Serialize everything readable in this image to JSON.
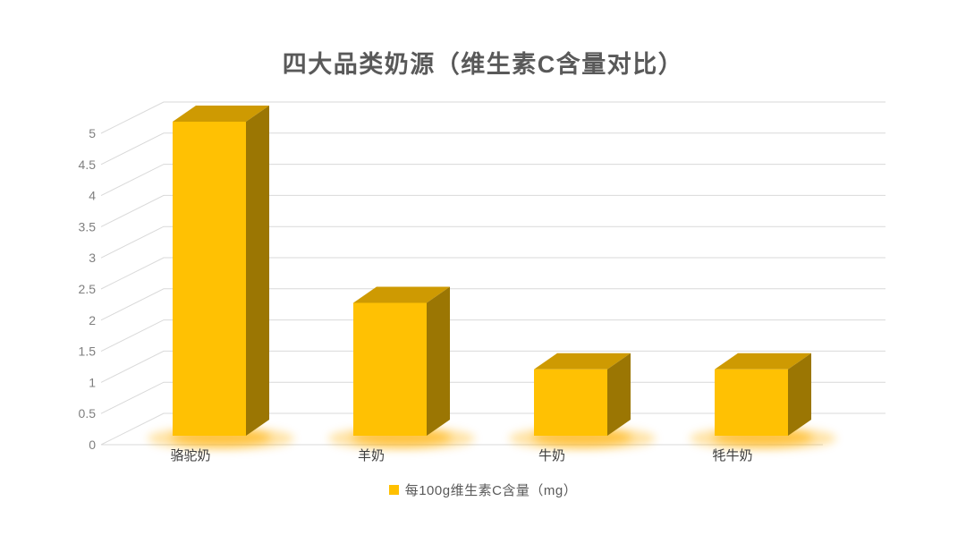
{
  "title": "四大品类奶源（维生素C含量对比）",
  "legend": {
    "label": "每100g维生素C含量（mg）",
    "marker_color": "#FFC000"
  },
  "colors": {
    "bar_front": "#FFC103",
    "bar_top": "#CE9A02",
    "bar_side": "#9B7603",
    "glow": "#FFAF00",
    "gridline": "#D9D9D9",
    "title_text": "#595959",
    "tick_text": "#7F7F7F",
    "category_text": "#3F3F3F",
    "legend_text": "#595959"
  },
  "chart_data": {
    "type": "bar",
    "style": "3d-column",
    "title": "四大品类奶源（维生素C含量对比）",
    "categories": [
      "骆驼奶",
      "羊奶",
      "牛奶",
      "牦牛奶"
    ],
    "series": [
      {
        "name": "每100g维生素C含量（mg）",
        "values": [
          5.2,
          2.2,
          1.1,
          1.1
        ]
      }
    ],
    "xlabel": "",
    "ylabel": "",
    "ylim": [
      0,
      5
    ],
    "ytick_step": 0.5,
    "yticks": [
      "0",
      "0.5",
      "1",
      "1.5",
      "2",
      "2.5",
      "3",
      "3.5",
      "4",
      "4.5",
      "5"
    ],
    "grid": true,
    "legend_position": "bottom"
  }
}
